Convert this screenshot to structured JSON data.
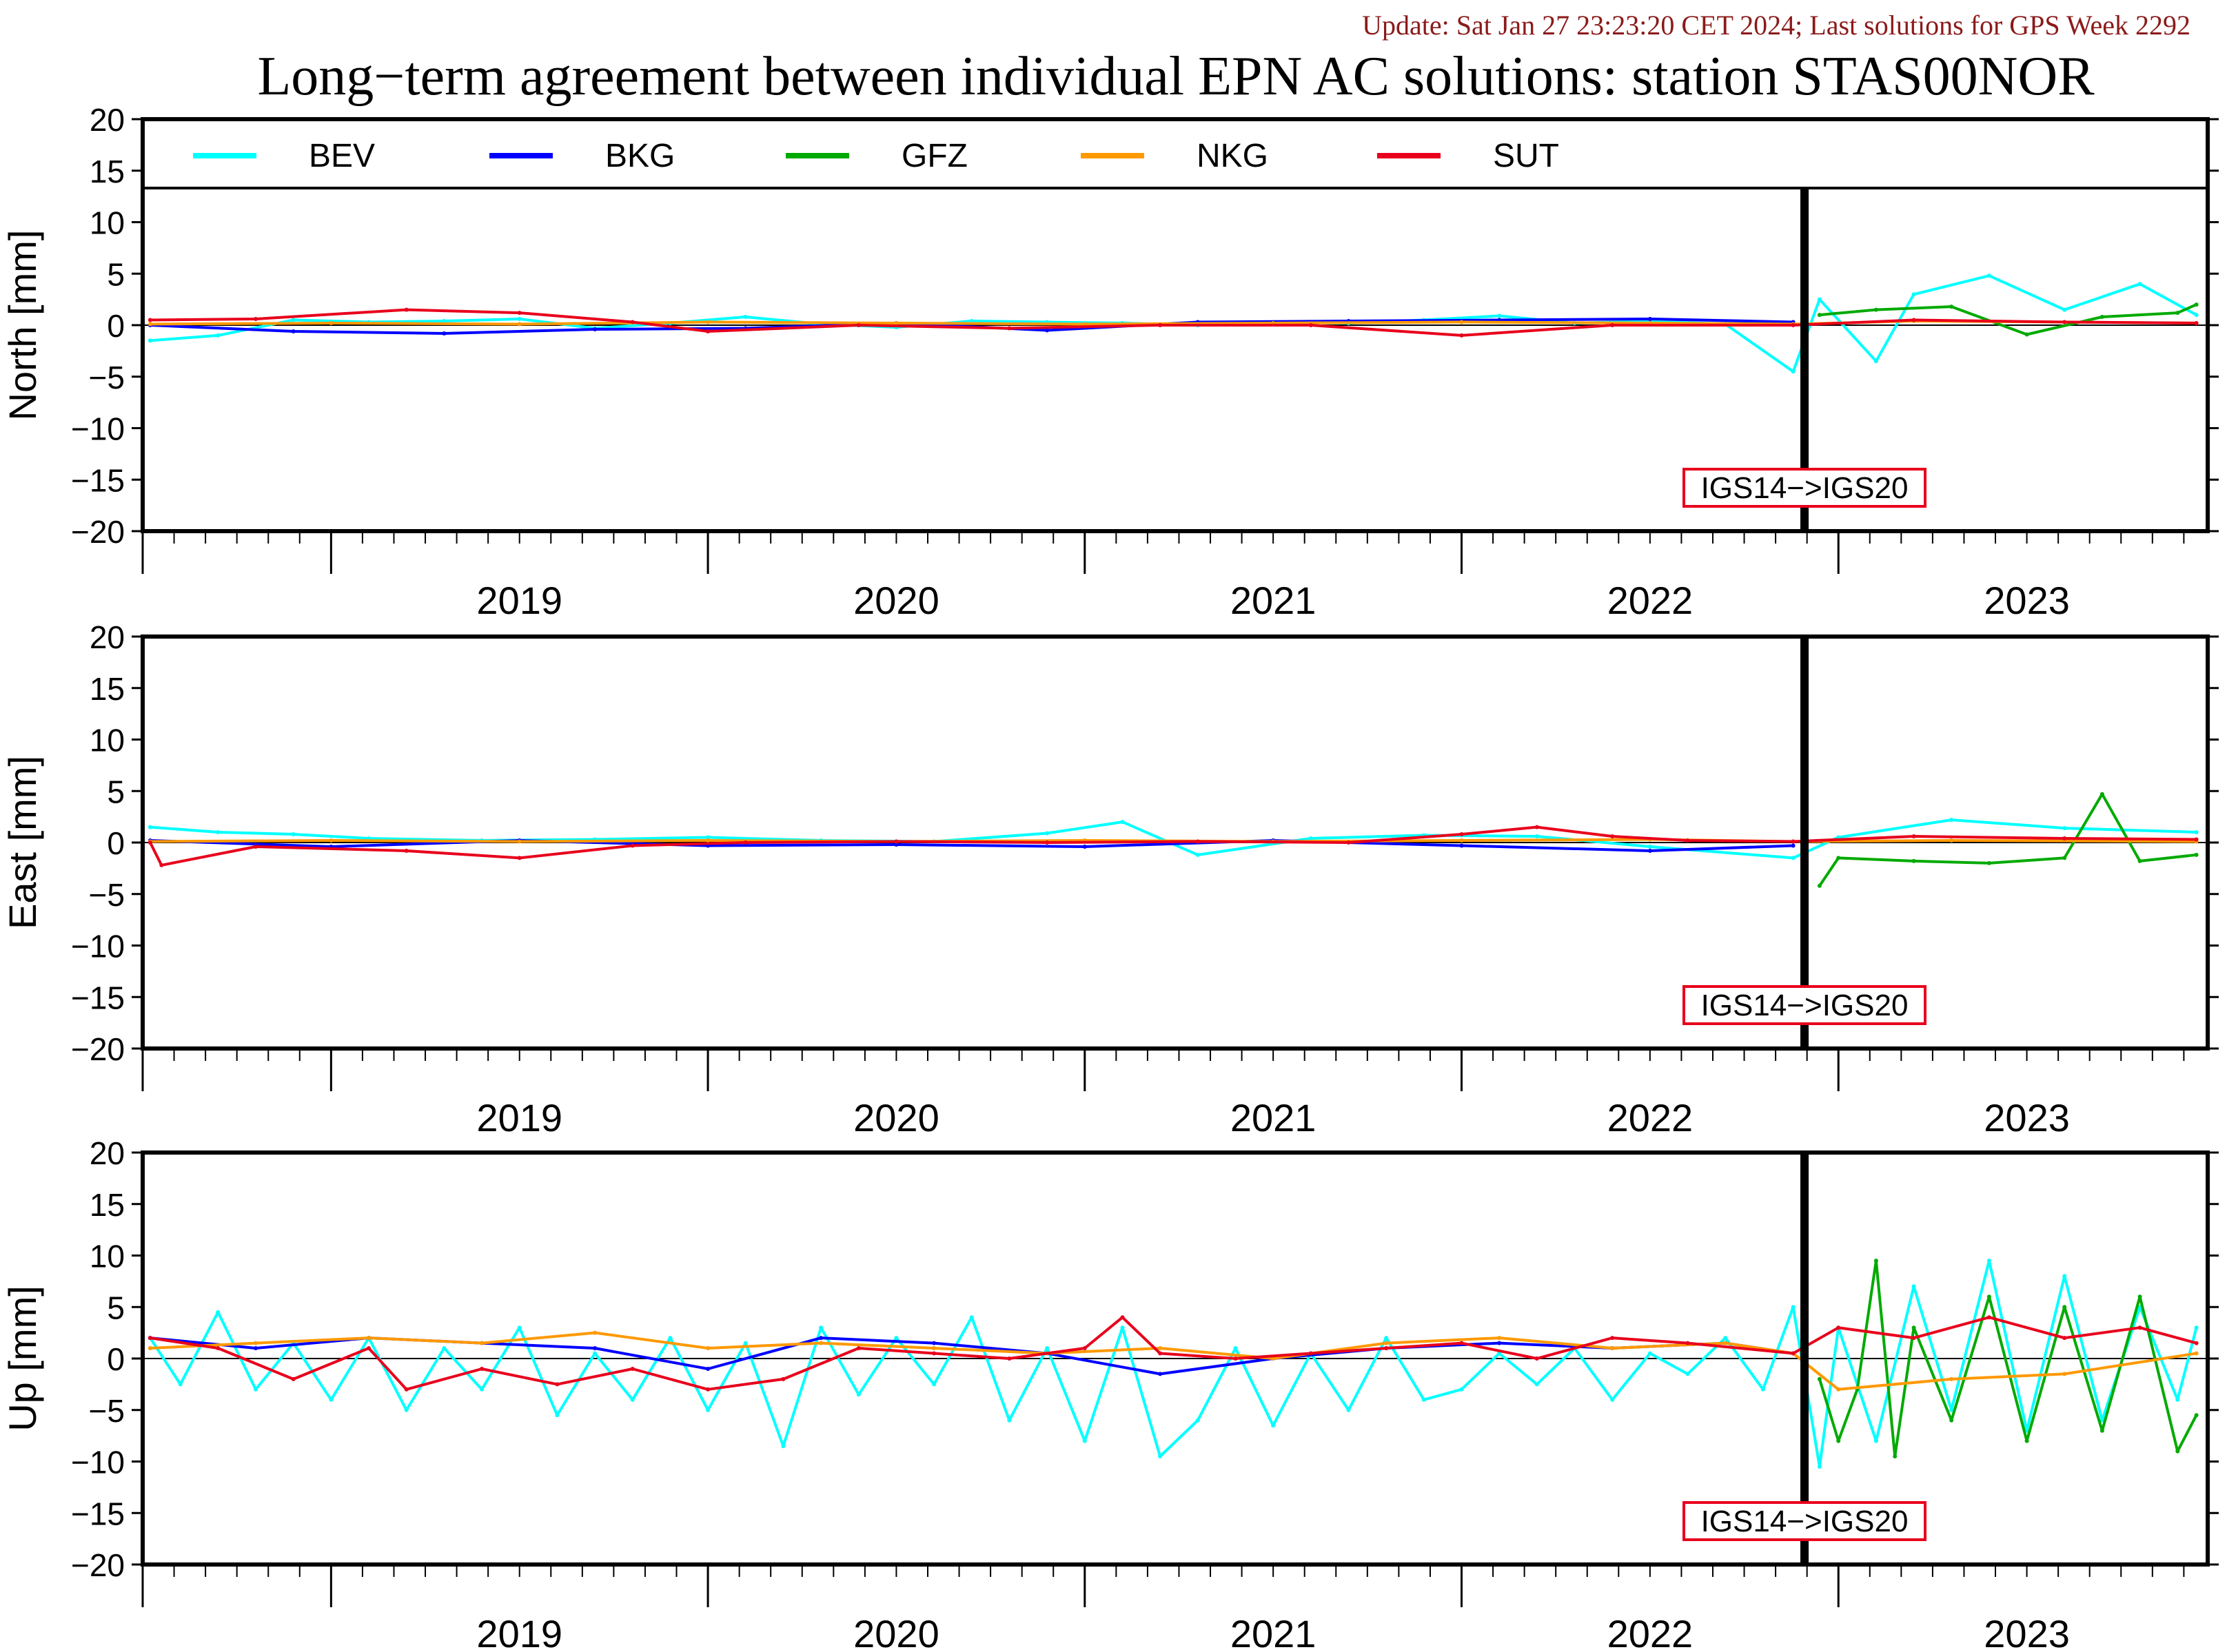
{
  "header": {
    "update_text": "Update: Sat Jan 27 23:23:20 CET 2024; Last solutions for GPS Week 2292",
    "title": "Long−term agreement between individual EPN AC solutions: station STAS00NOR"
  },
  "legend": [
    {
      "name": "BEV",
      "color": "#00ffff"
    },
    {
      "name": "BKG",
      "color": "#0000ff"
    },
    {
      "name": "GFZ",
      "color": "#00aa00"
    },
    {
      "name": "NKG",
      "color": "#ff9900"
    },
    {
      "name": "SUT",
      "color": "#e8001c"
    }
  ],
  "annotation": {
    "label": "IGS14−>IGS20",
    "frame_color": "#e8001c",
    "at_year": 2022.91
  },
  "chart_data": [
    {
      "type": "line",
      "title": "",
      "ylabel": "North [mm]",
      "xlim": [
        2018.5,
        2023.98
      ],
      "ylim": [
        -20,
        20
      ],
      "yticks": [
        "20",
        "15",
        "10",
        "5",
        "0",
        "−5",
        "−10",
        "−15",
        "−20"
      ],
      "xtick_labels": [
        "2019",
        "2020",
        "2021",
        "2022",
        "2023"
      ],
      "grid": false,
      "legend": "top",
      "series": [
        {
          "name": "BEV",
          "x": [
            2018.52,
            2018.7,
            2018.9,
            2019.1,
            2019.3,
            2019.5,
            2019.7,
            2019.9,
            2020.1,
            2020.3,
            2020.5,
            2020.7,
            2020.9,
            2021.1,
            2021.3,
            2021.5,
            2021.7,
            2021.9,
            2022.1,
            2022.3,
            2022.5,
            2022.7,
            2022.88,
            2022.95,
            2023.1,
            2023.2,
            2023.4,
            2023.6,
            2023.8,
            2023.95
          ],
          "y": [
            -1.5,
            -1.0,
            0.5,
            0.3,
            0.4,
            0.6,
            -0.3,
            0.2,
            0.8,
            0.1,
            -0.2,
            0.4,
            0.3,
            0.2,
            0.0,
            0.3,
            0.2,
            0.5,
            0.9,
            0.2,
            0.4,
            0.1,
            -4.5,
            2.5,
            -3.5,
            3.0,
            4.8,
            1.5,
            4.0,
            1.0
          ]
        },
        {
          "name": "BKG",
          "x": [
            2018.52,
            2018.9,
            2019.3,
            2019.7,
            2020.1,
            2020.5,
            2020.9,
            2021.3,
            2021.7,
            2022.1,
            2022.5,
            2022.88
          ],
          "y": [
            0.0,
            -0.6,
            -0.8,
            -0.4,
            -0.3,
            0.2,
            -0.5,
            0.3,
            0.4,
            0.5,
            0.6,
            0.3
          ]
        },
        {
          "name": "GFZ",
          "x": [
            2022.95,
            2023.1,
            2023.3,
            2023.5,
            2023.7,
            2023.9,
            2023.95
          ],
          "y": [
            1.0,
            1.5,
            1.8,
            -0.9,
            0.8,
            1.2,
            2.0
          ]
        },
        {
          "name": "NKG",
          "x": [
            2018.52,
            2019.0,
            2019.5,
            2020.0,
            2020.5,
            2021.0,
            2021.5,
            2022.0,
            2022.5,
            2022.88,
            2023.2,
            2023.6,
            2023.95
          ],
          "y": [
            0.1,
            0.2,
            0.1,
            0.3,
            0.2,
            0.1,
            0.2,
            0.3,
            0.2,
            0.1,
            0.4,
            0.3,
            0.2
          ]
        },
        {
          "name": "SUT",
          "x": [
            2018.52,
            2018.8,
            2019.2,
            2019.5,
            2019.8,
            2020.0,
            2020.4,
            2020.8,
            2021.2,
            2021.6,
            2022.0,
            2022.4,
            2022.88,
            2023.2,
            2023.6,
            2023.95
          ],
          "y": [
            0.5,
            0.6,
            1.5,
            1.2,
            0.3,
            -0.6,
            0.0,
            -0.3,
            0.0,
            0.0,
            -1.0,
            0.0,
            0.0,
            0.5,
            0.3,
            0.2
          ]
        }
      ]
    },
    {
      "type": "line",
      "title": "",
      "ylabel": "East [mm]",
      "xlim": [
        2018.5,
        2023.98
      ],
      "ylim": [
        -20,
        20
      ],
      "yticks": [
        "20",
        "15",
        "10",
        "5",
        "0",
        "−5",
        "−10",
        "−15",
        "−20"
      ],
      "xtick_labels": [
        "2019",
        "2020",
        "2021",
        "2022",
        "2023"
      ],
      "grid": false,
      "legend": "none",
      "series": [
        {
          "name": "BEV",
          "x": [
            2018.52,
            2018.7,
            2018.9,
            2019.1,
            2019.4,
            2019.7,
            2020.0,
            2020.3,
            2020.6,
            2020.9,
            2021.1,
            2021.3,
            2021.6,
            2021.9,
            2022.2,
            2022.5,
            2022.88,
            2023.0,
            2023.3,
            2023.6,
            2023.95
          ],
          "y": [
            1.5,
            1.0,
            0.8,
            0.4,
            0.2,
            0.3,
            0.5,
            0.2,
            0.1,
            0.9,
            2.0,
            -1.2,
            0.4,
            0.7,
            0.6,
            -0.4,
            -1.5,
            0.5,
            2.2,
            1.4,
            1.0
          ]
        },
        {
          "name": "BKG",
          "x": [
            2018.52,
            2019.0,
            2019.5,
            2020.0,
            2020.5,
            2021.0,
            2021.5,
            2022.0,
            2022.5,
            2022.88
          ],
          "y": [
            0.2,
            -0.4,
            0.2,
            -0.3,
            -0.2,
            -0.4,
            0.2,
            -0.3,
            -0.8,
            -0.3
          ]
        },
        {
          "name": "GFZ",
          "x": [
            2022.95,
            2023.0,
            2023.2,
            2023.4,
            2023.6,
            2023.7,
            2023.8,
            2023.95
          ],
          "y": [
            -4.2,
            -1.5,
            -1.8,
            -2.0,
            -1.5,
            4.7,
            -1.8,
            -1.2
          ]
        },
        {
          "name": "NKG",
          "x": [
            2018.52,
            2019.0,
            2019.5,
            2020.0,
            2020.5,
            2021.0,
            2021.5,
            2022.0,
            2022.5,
            2022.88,
            2023.3,
            2023.95
          ],
          "y": [
            0.1,
            0.2,
            0.1,
            0.2,
            0.1,
            0.2,
            0.1,
            0.2,
            0.3,
            0.1,
            0.2,
            0.1
          ]
        },
        {
          "name": "SUT",
          "x": [
            2018.52,
            2018.55,
            2018.8,
            2019.2,
            2019.5,
            2019.8,
            2020.1,
            2020.5,
            2020.9,
            2021.3,
            2021.7,
            2022.0,
            2022.2,
            2022.4,
            2022.6,
            2022.88,
            2023.2,
            2023.6,
            2023.95
          ],
          "y": [
            0.0,
            -2.2,
            -0.4,
            -0.8,
            -1.5,
            -0.3,
            0.0,
            0.1,
            0.0,
            0.1,
            0.0,
            0.8,
            1.5,
            0.6,
            0.2,
            0.1,
            0.6,
            0.4,
            0.3
          ]
        }
      ]
    },
    {
      "type": "line",
      "title": "",
      "ylabel": "Up [mm]",
      "xlim": [
        2018.5,
        2023.98
      ],
      "ylim": [
        -20,
        20
      ],
      "yticks": [
        "20",
        "15",
        "10",
        "5",
        "0",
        "−5",
        "−10",
        "−15",
        "−20"
      ],
      "xtick_labels": [
        "2019",
        "2020",
        "2021",
        "2022",
        "2023"
      ],
      "grid": false,
      "legend": "none",
      "series": [
        {
          "name": "BEV",
          "x": [
            2018.52,
            2018.6,
            2018.7,
            2018.8,
            2018.9,
            2019.0,
            2019.1,
            2019.2,
            2019.3,
            2019.4,
            2019.5,
            2019.6,
            2019.7,
            2019.8,
            2019.9,
            2020.0,
            2020.1,
            2020.2,
            2020.3,
            2020.4,
            2020.5,
            2020.6,
            2020.7,
            2020.8,
            2020.9,
            2021.0,
            2021.1,
            2021.2,
            2021.3,
            2021.4,
            2021.5,
            2021.6,
            2021.7,
            2021.8,
            2021.9,
            2022.0,
            2022.1,
            2022.2,
            2022.3,
            2022.4,
            2022.5,
            2022.6,
            2022.7,
            2022.8,
            2022.88,
            2022.95,
            2023.0,
            2023.1,
            2023.2,
            2023.3,
            2023.4,
            2023.5,
            2023.6,
            2023.7,
            2023.8,
            2023.9,
            2023.95
          ],
          "y": [
            2.0,
            -2.5,
            4.5,
            -3.0,
            1.5,
            -4.0,
            2.0,
            -5.0,
            1.0,
            -3.0,
            3.0,
            -5.5,
            0.5,
            -4.0,
            2.0,
            -5.0,
            1.5,
            -8.5,
            3.0,
            -3.5,
            2.0,
            -2.5,
            4.0,
            -6.0,
            1.0,
            -8.0,
            3.0,
            -9.5,
            -6.0,
            1.0,
            -6.5,
            0.5,
            -5.0,
            2.0,
            -4.0,
            -3.0,
            0.5,
            -2.5,
            1.0,
            -4.0,
            0.5,
            -1.5,
            2.0,
            -3.0,
            5.0,
            -10.5,
            3.0,
            -8.0,
            7.0,
            -5.0,
            9.5,
            -7.0,
            8.0,
            -6.0,
            5.0,
            -4.0,
            3.0
          ]
        },
        {
          "name": "BKG",
          "x": [
            2018.52,
            2018.8,
            2019.1,
            2019.4,
            2019.7,
            2020.0,
            2020.3,
            2020.6,
            2020.9,
            2021.2,
            2021.5,
            2021.8,
            2022.1,
            2022.4,
            2022.7,
            2022.88
          ],
          "y": [
            2.0,
            1.0,
            2.0,
            1.5,
            1.0,
            -1.0,
            2.0,
            1.5,
            0.5,
            -1.5,
            0.0,
            1.0,
            1.5,
            1.0,
            1.5,
            0.5
          ]
        },
        {
          "name": "GFZ",
          "x": [
            2022.95,
            2023.0,
            2023.05,
            2023.1,
            2023.15,
            2023.2,
            2023.3,
            2023.4,
            2023.5,
            2023.6,
            2023.7,
            2023.8,
            2023.9,
            2023.95
          ],
          "y": [
            -2.0,
            -8.0,
            -3.0,
            9.5,
            -9.5,
            3.0,
            -6.0,
            6.0,
            -8.0,
            5.0,
            -7.0,
            6.0,
            -9.0,
            -5.5
          ]
        },
        {
          "name": "NKG",
          "x": [
            2018.52,
            2018.8,
            2019.1,
            2019.4,
            2019.7,
            2020.0,
            2020.3,
            2020.6,
            2020.9,
            2021.2,
            2021.5,
            2021.8,
            2022.1,
            2022.4,
            2022.7,
            2022.88,
            2023.0,
            2023.3,
            2023.6,
            2023.95
          ],
          "y": [
            1.0,
            1.5,
            2.0,
            1.5,
            2.5,
            1.0,
            1.5,
            1.0,
            0.5,
            1.0,
            0.0,
            1.5,
            2.0,
            1.0,
            1.5,
            0.5,
            -3.0,
            -2.0,
            -1.5,
            0.5
          ]
        },
        {
          "name": "SUT",
          "x": [
            2018.52,
            2018.7,
            2018.9,
            2019.1,
            2019.2,
            2019.4,
            2019.6,
            2019.8,
            2020.0,
            2020.2,
            2020.4,
            2020.6,
            2020.8,
            2021.0,
            2021.1,
            2021.2,
            2021.4,
            2021.6,
            2021.8,
            2022.0,
            2022.2,
            2022.4,
            2022.6,
            2022.88,
            2023.0,
            2023.2,
            2023.4,
            2023.6,
            2023.8,
            2023.95
          ],
          "y": [
            2.0,
            1.0,
            -2.0,
            1.0,
            -3.0,
            -1.0,
            -2.5,
            -1.0,
            -3.0,
            -2.0,
            1.0,
            0.5,
            0.0,
            1.0,
            4.0,
            0.5,
            0.0,
            0.5,
            1.0,
            1.5,
            0.0,
            2.0,
            1.5,
            0.5,
            3.0,
            2.0,
            4.0,
            2.0,
            3.0,
            1.5
          ]
        }
      ]
    }
  ]
}
